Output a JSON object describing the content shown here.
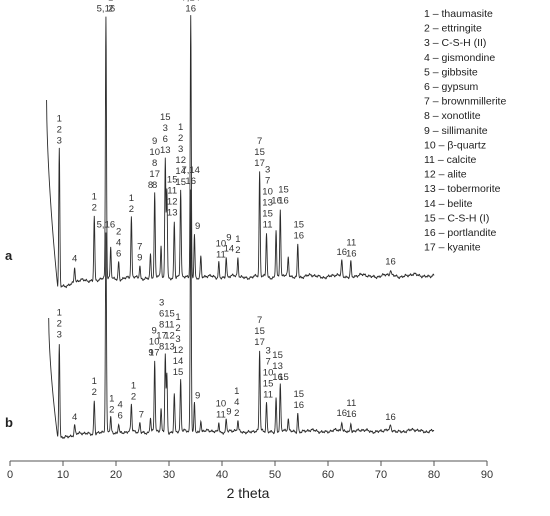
{
  "chart_data": {
    "type": "line",
    "xlabel": "2 theta",
    "xlim": [
      0,
      90
    ],
    "x_ticks": [
      0,
      10,
      20,
      30,
      40,
      50,
      60,
      70,
      80,
      90
    ],
    "grid": false,
    "legend_position": "top-right",
    "legend": [
      "1 – thaumasite",
      "2 – ettringite",
      "3 – C-S-H (II)",
      "4 – gismondine",
      "5 – gibbsite",
      "6 – gypsum",
      "7 – brownmillerite",
      "8 – xonotlite",
      "9 – sillimanite",
      "10 – β-quartz",
      "11 – calcite",
      "12 – alite",
      "13 – tobermorite",
      "14 – belite",
      "15 – C-S-H (I)",
      "16 – portlandite",
      "17 – kyanite"
    ],
    "series": [
      {
        "name": "a",
        "peaks": [
          {
            "x": 9.3,
            "h": 0.53
          },
          {
            "x": 12.2,
            "h": 0.06
          },
          {
            "x": 15.9,
            "h": 0.25
          },
          {
            "x": 18.1,
            "h": 1.0
          },
          {
            "x": 19.0,
            "h": 0.12
          },
          {
            "x": 20.5,
            "h": 0.07
          },
          {
            "x": 22.9,
            "h": 0.23
          },
          {
            "x": 24.5,
            "h": 0.05
          },
          {
            "x": 26.5,
            "h": 0.09
          },
          {
            "x": 27.3,
            "h": 0.32
          },
          {
            "x": 28.5,
            "h": 0.12
          },
          {
            "x": 29.3,
            "h": 0.46
          },
          {
            "x": 29.6,
            "h": 0.34
          },
          {
            "x": 31.0,
            "h": 0.22
          },
          {
            "x": 32.2,
            "h": 0.33
          },
          {
            "x": 34.1,
            "h": 1.0
          },
          {
            "x": 34.8,
            "h": 0.17
          },
          {
            "x": 36.0,
            "h": 0.08
          },
          {
            "x": 39.4,
            "h": 0.06
          },
          {
            "x": 40.8,
            "h": 0.08
          },
          {
            "x": 43.0,
            "h": 0.07
          },
          {
            "x": 47.1,
            "h": 0.4
          },
          {
            "x": 48.4,
            "h": 0.17
          },
          {
            "x": 50.2,
            "h": 0.18
          },
          {
            "x": 51.0,
            "h": 0.26
          },
          {
            "x": 52.5,
            "h": 0.07
          },
          {
            "x": 54.3,
            "h": 0.13
          },
          {
            "x": 62.6,
            "h": 0.06
          },
          {
            "x": 64.3,
            "h": 0.06
          },
          {
            "x": 71.8,
            "h": 0.02
          }
        ],
        "labels": [
          {
            "x": 9.3,
            "lines": [
              "1",
              "2",
              "3"
            ]
          },
          {
            "x": 12.2,
            "lines": [
              "4"
            ]
          },
          {
            "x": 15.9,
            "lines": [
              "1",
              "2"
            ]
          },
          {
            "x": 18.1,
            "lines": [
              "5,16"
            ]
          },
          {
            "x": 19.0,
            "lines": [
              "1",
              "2"
            ]
          },
          {
            "x": 20.5,
            "lines": [
              "2",
              "4",
              "6"
            ]
          },
          {
            "x": 22.9,
            "lines": [
              "1",
              "2"
            ]
          },
          {
            "x": 24.5,
            "lines": [
              "7",
              "9"
            ]
          },
          {
            "x": 26.5,
            "lines": [
              "8"
            ]
          },
          {
            "x": 27.3,
            "lines": [
              "9",
              "10",
              "8",
              "17",
              "8"
            ]
          },
          {
            "x": 29.3,
            "lines": [
              "15",
              "3",
              "6",
              "13"
            ]
          },
          {
            "x": 30.6,
            "lines": [
              "15",
              "11",
              "12",
              "13"
            ]
          },
          {
            "x": 32.2,
            "lines": [
              "1",
              "2",
              "3",
              "12",
              "14",
              "15"
            ]
          },
          {
            "x": 34.1,
            "lines": [
              "7,14",
              "16"
            ]
          },
          {
            "x": 35.4,
            "lines": [
              "9"
            ]
          },
          {
            "x": 39.8,
            "lines": [
              "10",
              "11"
            ]
          },
          {
            "x": 41.3,
            "lines": [
              "9",
              "14"
            ]
          },
          {
            "x": 43.0,
            "lines": [
              "1",
              "2"
            ]
          },
          {
            "x": 47.1,
            "lines": [
              "7",
              "15",
              "17"
            ]
          },
          {
            "x": 48.6,
            "lines": [
              "3",
              "7",
              "10",
              "13",
              "15",
              "11"
            ]
          },
          {
            "x": 50.3,
            "lines": [
              "16"
            ]
          },
          {
            "x": 51.6,
            "lines": [
              "15",
              "16"
            ]
          },
          {
            "x": 54.5,
            "lines": [
              "15",
              "16"
            ]
          },
          {
            "x": 62.6,
            "lines": [
              "16"
            ]
          },
          {
            "x": 64.4,
            "lines": [
              "11",
              "16"
            ]
          },
          {
            "x": 71.8,
            "lines": [
              "16"
            ]
          }
        ]
      },
      {
        "name": "b",
        "peaks": [
          {
            "x": 9.3,
            "h": 0.39
          },
          {
            "x": 12.2,
            "h": 0.04
          },
          {
            "x": 15.9,
            "h": 0.14
          },
          {
            "x": 18.1,
            "h": 0.82
          },
          {
            "x": 19.0,
            "h": 0.06
          },
          {
            "x": 20.5,
            "h": 0.04
          },
          {
            "x": 22.9,
            "h": 0.11
          },
          {
            "x": 24.5,
            "h": 0.04
          },
          {
            "x": 26.5,
            "h": 0.06
          },
          {
            "x": 27.3,
            "h": 0.29
          },
          {
            "x": 28.5,
            "h": 0.09
          },
          {
            "x": 29.3,
            "h": 0.32
          },
          {
            "x": 29.6,
            "h": 0.24
          },
          {
            "x": 31.0,
            "h": 0.16
          },
          {
            "x": 32.2,
            "h": 0.21
          },
          {
            "x": 34.1,
            "h": 1.0
          },
          {
            "x": 34.8,
            "h": 0.12
          },
          {
            "x": 36.0,
            "h": 0.05
          },
          {
            "x": 39.4,
            "h": 0.04
          },
          {
            "x": 40.8,
            "h": 0.05
          },
          {
            "x": 43.0,
            "h": 0.04
          },
          {
            "x": 47.1,
            "h": 0.33
          },
          {
            "x": 48.4,
            "h": 0.12
          },
          {
            "x": 50.2,
            "h": 0.14
          },
          {
            "x": 51.0,
            "h": 0.19
          },
          {
            "x": 52.5,
            "h": 0.05
          },
          {
            "x": 54.3,
            "h": 0.08
          },
          {
            "x": 62.6,
            "h": 0.04
          },
          {
            "x": 64.3,
            "h": 0.04
          },
          {
            "x": 71.8,
            "h": 0.02
          }
        ],
        "labels": [
          {
            "x": 9.3,
            "lines": [
              "1",
              "2",
              "3"
            ]
          },
          {
            "x": 12.2,
            "lines": [
              "4"
            ]
          },
          {
            "x": 15.9,
            "lines": [
              "1",
              "2"
            ]
          },
          {
            "x": 18.1,
            "lines": [
              "5,16"
            ]
          },
          {
            "x": 19.2,
            "lines": [
              "1",
              "2"
            ]
          },
          {
            "x": 20.8,
            "lines": [
              "4",
              "6"
            ]
          },
          {
            "x": 23.3,
            "lines": [
              "1",
              "2"
            ]
          },
          {
            "x": 24.8,
            "lines": [
              "7"
            ]
          },
          {
            "x": 26.6,
            "lines": [
              "9"
            ]
          },
          {
            "x": 27.2,
            "lines": [
              "9",
              "10",
              "17"
            ]
          },
          {
            "x": 28.6,
            "lines": [
              "3",
              "6",
              "8",
              "17",
              "8"
            ]
          },
          {
            "x": 30.1,
            "lines": [
              "15",
              "11",
              "12",
              "13"
            ]
          },
          {
            "x": 31.7,
            "lines": [
              "1",
              "2",
              "3",
              "12",
              "14",
              "15"
            ]
          },
          {
            "x": 34.1,
            "lines": [
              "7,14",
              "16"
            ]
          },
          {
            "x": 35.4,
            "lines": [
              "9"
            ]
          },
          {
            "x": 39.8,
            "lines": [
              "10",
              "11"
            ]
          },
          {
            "x": 41.3,
            "lines": [
              "9"
            ]
          },
          {
            "x": 42.8,
            "lines": [
              "1",
              "4",
              "2"
            ]
          },
          {
            "x": 47.1,
            "lines": [
              "7",
              "15",
              "17"
            ]
          },
          {
            "x": 48.7,
            "lines": [
              "3",
              "7",
              "10",
              "15",
              "11"
            ]
          },
          {
            "x": 50.5,
            "lines": [
              "15",
              "13",
              "16"
            ]
          },
          {
            "x": 51.6,
            "lines": [
              "15"
            ]
          },
          {
            "x": 54.5,
            "lines": [
              "15",
              "16"
            ]
          },
          {
            "x": 62.6,
            "lines": [
              "16"
            ]
          },
          {
            "x": 64.4,
            "lines": [
              "11",
              "16"
            ]
          },
          {
            "x": 71.8,
            "lines": [
              "16"
            ]
          }
        ]
      }
    ]
  }
}
